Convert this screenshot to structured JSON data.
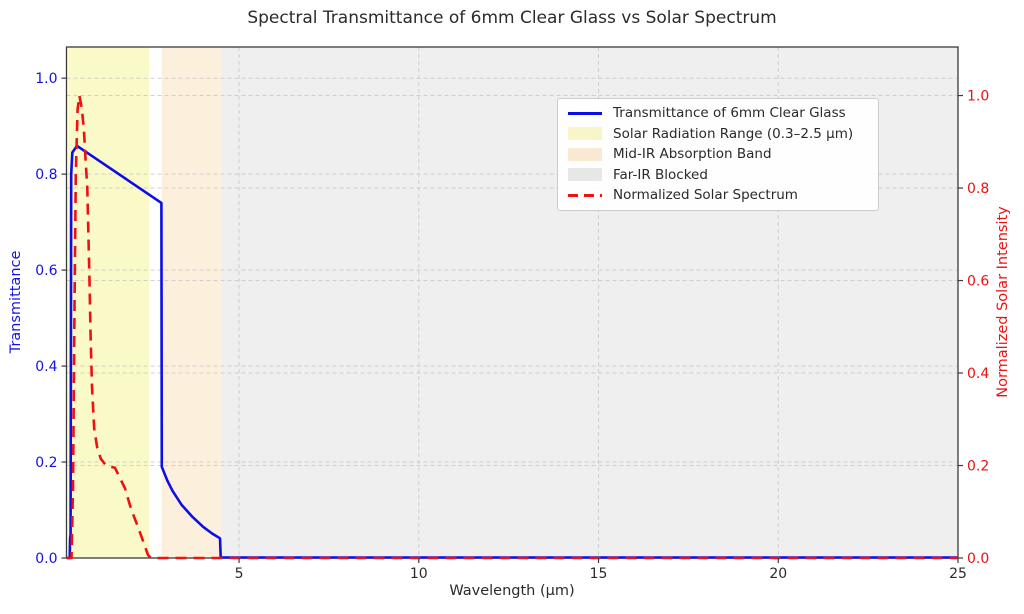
{
  "chart_data": {
    "type": "line",
    "title": "Spectral Transmittance of 6mm Clear Glass vs Solar Spectrum",
    "xlabel": "Wavelength (µm)",
    "ylabel_left": "Transmittance",
    "ylabel_right": "Normalized Solar Intensity",
    "xlim": [
      0.2,
      25
    ],
    "ylim_left": [
      0,
      1.065
    ],
    "ylim_right": [
      0,
      1.105
    ],
    "grid": true,
    "legend_position": "upper right",
    "x": {
      "ticks": [
        5,
        10,
        15,
        20,
        25
      ],
      "tick_labels": [
        "5",
        "10",
        "15",
        "20",
        "25"
      ]
    },
    "y_left": {
      "ticks": [
        0,
        0.2,
        0.4,
        0.6,
        0.8,
        1.0
      ],
      "tick_labels": [
        "0.0",
        "0.2",
        "0.4",
        "0.6",
        "0.8",
        "1.0"
      ],
      "color": "#1414e0"
    },
    "y_right": {
      "ticks": [
        0,
        0.2,
        0.4,
        0.6,
        0.8,
        1.0
      ],
      "tick_labels": [
        "0.0",
        "0.2",
        "0.4",
        "0.6",
        "0.8",
        "1.0"
      ],
      "color": "#ed1111"
    },
    "bands": [
      {
        "name": "solar-radiation-range",
        "label": "Solar Radiation Range (0.3–2.5 µm)",
        "x0": 0.25,
        "x1": 2.5,
        "color": "#fafac8"
      },
      {
        "name": "mid-ir-absorption",
        "label": "Mid-IR Absorption Band",
        "x0": 2.85,
        "x1": 4.5,
        "color": "#fcf0dd"
      },
      {
        "name": "far-ir-blocked",
        "label": "Far-IR Blocked",
        "x0": 4.5,
        "x1": 25,
        "color": "#efefef"
      }
    ],
    "series": [
      {
        "name": "Transmittance of 6mm Clear Glass",
        "axis": "left",
        "color": "#0d0de8",
        "style": "solid",
        "points": [
          [
            0.2,
            0
          ],
          [
            0.29,
            0
          ],
          [
            0.3,
            0.04
          ],
          [
            0.315,
            0.05
          ],
          [
            0.33,
            0.8
          ],
          [
            0.36,
            0.845
          ],
          [
            0.49,
            0.859
          ],
          [
            2.84,
            0.74
          ],
          [
            2.85,
            0.19
          ],
          [
            3.0,
            0.162
          ],
          [
            3.15,
            0.14
          ],
          [
            3.4,
            0.111
          ],
          [
            3.7,
            0.086
          ],
          [
            4.0,
            0.065
          ],
          [
            4.25,
            0.051
          ],
          [
            4.47,
            0.041
          ],
          [
            4.49,
            0.001
          ],
          [
            25,
            0.001
          ]
        ]
      },
      {
        "name": "Normalized Solar Spectrum",
        "axis": "right",
        "color": "#ed1111",
        "style": "dashed",
        "points": [
          [
            0.2,
            0
          ],
          [
            0.34,
            0
          ],
          [
            0.38,
            0.15
          ],
          [
            0.42,
            0.52
          ],
          [
            0.46,
            0.83
          ],
          [
            0.51,
            0.97
          ],
          [
            0.56,
            1.0
          ],
          [
            0.62,
            0.975
          ],
          [
            0.68,
            0.93
          ],
          [
            0.73,
            0.86
          ],
          [
            0.78,
            0.8
          ],
          [
            0.81,
            0.7
          ],
          [
            0.84,
            0.6
          ],
          [
            0.87,
            0.48
          ],
          [
            0.91,
            0.37
          ],
          [
            0.97,
            0.28
          ],
          [
            1.05,
            0.24
          ],
          [
            1.15,
            0.215
          ],
          [
            1.3,
            0.2
          ],
          [
            1.55,
            0.195
          ],
          [
            1.83,
            0.15
          ],
          [
            2.0,
            0.105
          ],
          [
            2.15,
            0.075
          ],
          [
            2.3,
            0.043
          ],
          [
            2.47,
            0.006
          ],
          [
            2.55,
            0
          ],
          [
            25,
            0
          ]
        ]
      }
    ],
    "legend": {
      "items": [
        {
          "label": "Transmittance of 6mm Clear Glass",
          "type": "line",
          "color": "#0d0de8",
          "dash": "solid"
        },
        {
          "label": "Solar Radiation Range (0.3–2.5 µm)",
          "type": "patch",
          "color": "#f8f5c8"
        },
        {
          "label": "Mid-IR Absorption Band",
          "type": "patch",
          "color": "#f9e9d2"
        },
        {
          "label": "Far-IR Blocked",
          "type": "patch",
          "color": "#e7e7e7"
        },
        {
          "label": "Normalized Solar Spectrum",
          "type": "line",
          "color": "#ed1111",
          "dash": "dashed"
        }
      ]
    },
    "colors": {
      "grid": "#c4c4c4",
      "spine": "#3a3a3a",
      "text": "#2b2b2b",
      "background": "#ffffff"
    }
  }
}
